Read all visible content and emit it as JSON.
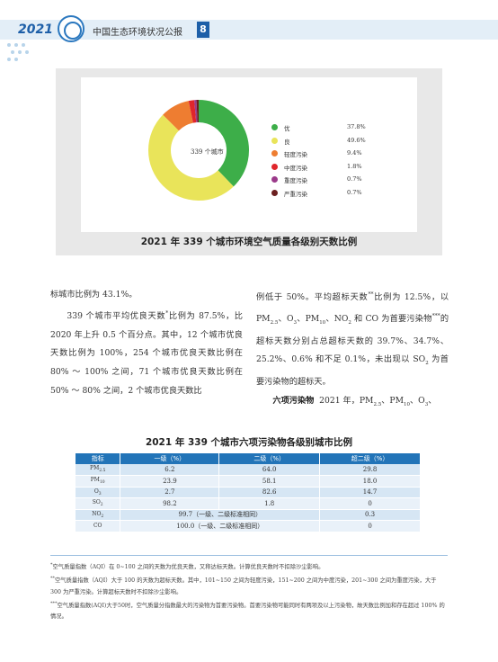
{
  "header": {
    "year": "2021",
    "title": "中国生态环境状况公报",
    "page_number": "8"
  },
  "figure": {
    "center_label": "339 个城市",
    "caption": "2021 年 339 个城市环境空气质量各级别天数比例",
    "chart_data": {
      "type": "pie",
      "title": "2021 年 339 个城市环境空气质量各级别天数比例",
      "categories": [
        "优",
        "良",
        "轻度污染",
        "中度污染",
        "重度污染",
        "严重污染"
      ],
      "values": [
        37.8,
        49.6,
        9.4,
        1.8,
        0.7,
        0.7
      ],
      "value_labels": [
        "37.8%",
        "49.6%",
        "9.4%",
        "1.8%",
        "0.7%",
        "0.7%"
      ],
      "colors": [
        "#3dae49",
        "#e9e45a",
        "#ee7d31",
        "#e0262b",
        "#9b3a8a",
        "#6b1f1f"
      ],
      "legend_position": "right"
    }
  },
  "body": {
    "left_col": {
      "line_first": "标城市比例为 43.1%。",
      "para2_a": "339 个城市平均优良天数",
      "para2_b": "比例为 87.5%，比 2020 年上升 0.5 个百分点。其中，12 个城市优良天数比例为 100%，254 个城市优良天数比例在 80% ～ 100% 之间，71 个城市优良天数比例在 50% ～ 80% 之间，2 个城市优良天数比"
    },
    "right_col": {
      "para1_a": "例低于 50%。平均超标天数",
      "para1_b": "比例为 12.5%，以 PM",
      "para1_c": "、O",
      "para1_d": "、PM",
      "para1_e": "、NO",
      "para1_f": " 和 CO 为首要污染物",
      "para1_g": "的超标天数分别占总超标天数的 39.7%、34.7%、25.2%、0.6% 和不足 0.1%，未出现以 SO",
      "para1_h": " 为首要污染物的超标天。",
      "para2_heading": "六项污染物",
      "para2_a": "2021 年，PM",
      "para2_b": "、PM",
      "para2_c": "、O",
      "para2_d": "、"
    },
    "markers": {
      "single": "*",
      "double": "**",
      "triple": "***"
    },
    "subscripts": {
      "pm25": "2.5",
      "pm10": "10",
      "o3": "3",
      "no2": "2",
      "so2": "2"
    }
  },
  "table": {
    "title": "2021 年 339 个城市六项污染物各级别城市比例",
    "headers": [
      "指标",
      "一级（%）",
      "二级（%）",
      "超二级（%）"
    ],
    "rows": [
      {
        "name": "PM",
        "sub": "2.5",
        "c1": "6.2",
        "c2": "64.0",
        "c3": "29.8"
      },
      {
        "name": "PM",
        "sub": "10",
        "c1": "23.9",
        "c2": "58.1",
        "c3": "18.0"
      },
      {
        "name": "O",
        "sub": "3",
        "c1": "2.7",
        "c2": "82.6",
        "c3": "14.7"
      },
      {
        "name": "SO",
        "sub": "2",
        "c1": "98.2",
        "c2": "1.8",
        "c3": "0"
      },
      {
        "name": "NO",
        "sub": "2",
        "merged": "99.7（一级、二级标准相同）",
        "c3": "0.3"
      },
      {
        "name": "CO",
        "sub": "",
        "merged": "100.0（一级、二级标准相同）",
        "c3": "0"
      }
    ]
  },
  "footnotes": [
    {
      "marker": "*",
      "text": "空气质量指数（AQI）在 0~100 之间的天数为优良天数，又称达标天数。计算优良天数时不扣除沙尘影响。"
    },
    {
      "marker": "**",
      "text": "空气质量指数（AQI）大于 100 的天数为超标天数。其中，101~150 之间为轻度污染，151~200 之间为中度污染，201~300 之间为重度污染，大于 300 为严重污染。计算超标天数时不扣除沙尘影响。"
    },
    {
      "marker": "***",
      "text": "空气质量指数(AQI)大于50时，空气质量分指数最大的污染物为首要污染物。首要污染物可能同时有两项及以上污染物，故天数比例加和存在超过 100% 的情况。"
    }
  ]
}
